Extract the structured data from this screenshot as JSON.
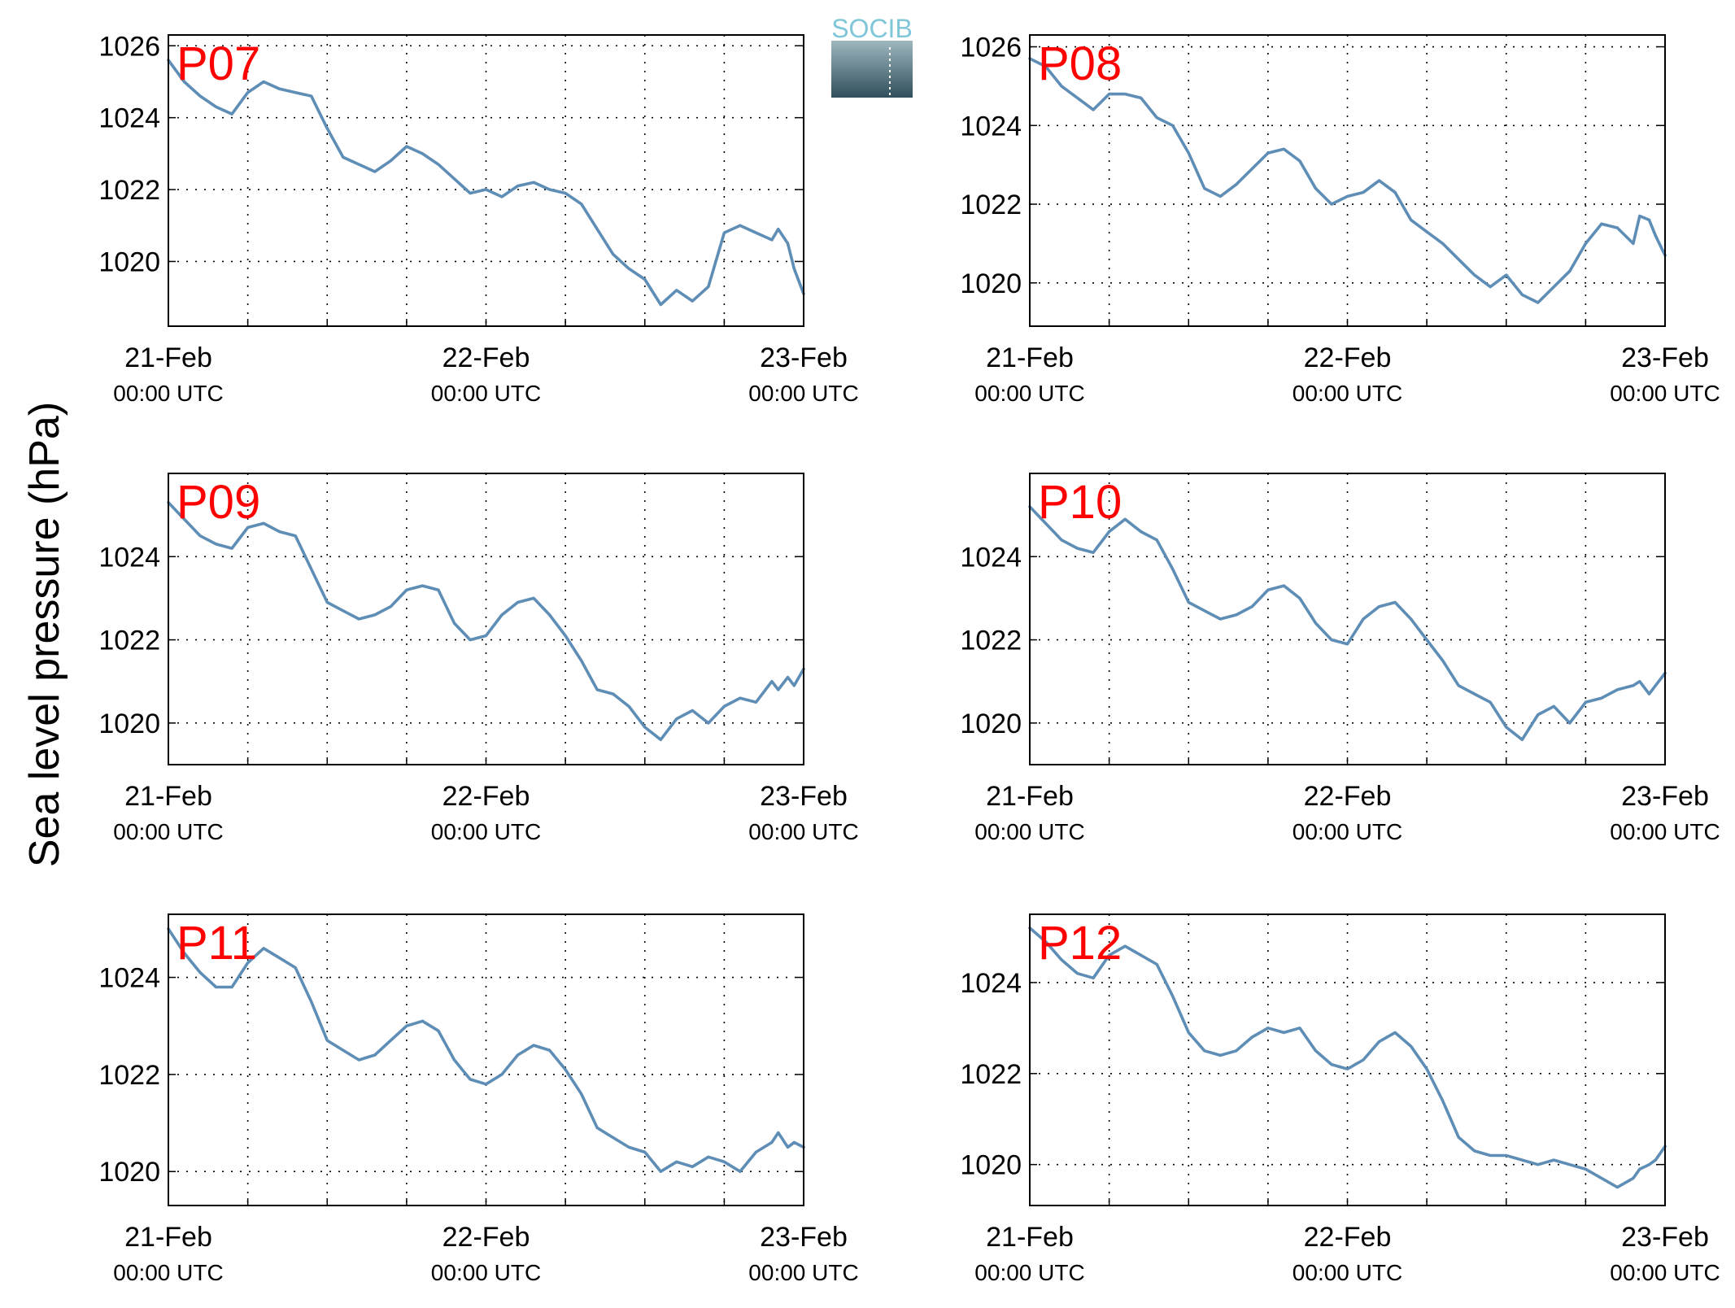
{
  "figure": {
    "ylabel": "Sea level pressure (hPa)",
    "logo_text": "SOCIB",
    "colors": {
      "line": "#5e8db5",
      "panel_label": "#ff0000",
      "axes": "#000000",
      "grid": "#000000",
      "logo_text": "#7fc6d8"
    }
  },
  "chart_data": [
    {
      "type": "line",
      "title": "P07",
      "x_unit": "day offset from 21-Feb 00:00 UTC",
      "xlim": [
        0,
        2
      ],
      "ylim": [
        1018.2,
        1026.3
      ],
      "yticks": [
        1020,
        1022,
        1024,
        1026
      ],
      "xticks": [
        {
          "label": "21-Feb",
          "sub": "00:00 UTC",
          "x": 0
        },
        {
          "label": "22-Feb",
          "sub": "00:00 UTC",
          "x": 1
        },
        {
          "label": "23-Feb",
          "sub": "00:00 UTC",
          "x": 2
        }
      ],
      "grid": true,
      "series": [
        {
          "x": [
            0,
            0.05,
            0.1,
            0.15,
            0.2,
            0.25,
            0.3,
            0.35,
            0.4,
            0.45,
            0.5,
            0.55,
            0.6,
            0.65,
            0.7,
            0.75,
            0.8,
            0.85,
            0.9,
            0.95,
            1,
            1.05,
            1.1,
            1.15,
            1.2,
            1.25,
            1.3,
            1.35,
            1.4,
            1.45,
            1.5,
            1.55,
            1.6,
            1.65,
            1.7,
            1.75,
            1.8,
            1.85,
            1.9,
            1.92,
            1.95,
            1.97,
            2
          ],
          "y": [
            1025.6,
            1025.0,
            1024.6,
            1024.3,
            1024.1,
            1024.7,
            1025.0,
            1024.8,
            1024.7,
            1024.6,
            1023.7,
            1022.9,
            1022.7,
            1022.5,
            1022.8,
            1023.2,
            1023.0,
            1022.7,
            1022.3,
            1021.9,
            1022.0,
            1021.8,
            1022.1,
            1022.2,
            1022.0,
            1021.9,
            1021.6,
            1020.9,
            1020.2,
            1019.8,
            1019.5,
            1018.8,
            1019.2,
            1018.9,
            1019.3,
            1020.8,
            1021.0,
            1020.8,
            1020.6,
            1020.9,
            1020.5,
            1019.8,
            1019.1
          ]
        }
      ]
    },
    {
      "type": "line",
      "title": "P08",
      "x_unit": "day offset from 21-Feb 00:00 UTC",
      "xlim": [
        0,
        2
      ],
      "ylim": [
        1018.9,
        1026.3
      ],
      "yticks": [
        1020,
        1022,
        1024,
        1026
      ],
      "xticks": [
        {
          "label": "21-Feb",
          "sub": "00:00 UTC",
          "x": 0
        },
        {
          "label": "22-Feb",
          "sub": "00:00 UTC",
          "x": 1
        },
        {
          "label": "23-Feb",
          "sub": "00:00 UTC",
          "x": 2
        }
      ],
      "grid": true,
      "series": [
        {
          "x": [
            0,
            0.05,
            0.1,
            0.15,
            0.2,
            0.25,
            0.3,
            0.35,
            0.4,
            0.45,
            0.5,
            0.55,
            0.6,
            0.65,
            0.7,
            0.75,
            0.8,
            0.85,
            0.9,
            0.95,
            1,
            1.05,
            1.1,
            1.15,
            1.2,
            1.25,
            1.3,
            1.35,
            1.4,
            1.45,
            1.5,
            1.55,
            1.6,
            1.65,
            1.7,
            1.75,
            1.8,
            1.85,
            1.9,
            1.92,
            1.95,
            1.97,
            2
          ],
          "y": [
            1025.7,
            1025.5,
            1025.0,
            1024.7,
            1024.4,
            1024.8,
            1024.8,
            1024.7,
            1024.2,
            1024.0,
            1023.3,
            1022.4,
            1022.2,
            1022.5,
            1022.9,
            1023.3,
            1023.4,
            1023.1,
            1022.4,
            1022.0,
            1022.2,
            1022.3,
            1022.6,
            1022.3,
            1021.6,
            1021.3,
            1021.0,
            1020.6,
            1020.2,
            1019.9,
            1020.2,
            1019.7,
            1019.5,
            1019.9,
            1020.3,
            1021.0,
            1021.5,
            1021.4,
            1021.0,
            1021.7,
            1021.6,
            1021.2,
            1020.7
          ]
        }
      ]
    },
    {
      "type": "line",
      "title": "P09",
      "x_unit": "day offset from 21-Feb 00:00 UTC",
      "xlim": [
        0,
        2
      ],
      "ylim": [
        1019.0,
        1026.0
      ],
      "yticks": [
        1020,
        1022,
        1024
      ],
      "xticks": [
        {
          "label": "21-Feb",
          "sub": "00:00 UTC",
          "x": 0
        },
        {
          "label": "22-Feb",
          "sub": "00:00 UTC",
          "x": 1
        },
        {
          "label": "23-Feb",
          "sub": "00:00 UTC",
          "x": 2
        }
      ],
      "grid": true,
      "series": [
        {
          "x": [
            0,
            0.05,
            0.1,
            0.15,
            0.2,
            0.25,
            0.3,
            0.35,
            0.4,
            0.45,
            0.5,
            0.55,
            0.6,
            0.65,
            0.7,
            0.75,
            0.8,
            0.85,
            0.9,
            0.95,
            1,
            1.05,
            1.1,
            1.15,
            1.2,
            1.25,
            1.3,
            1.35,
            1.4,
            1.45,
            1.5,
            1.55,
            1.6,
            1.65,
            1.7,
            1.75,
            1.8,
            1.85,
            1.9,
            1.92,
            1.95,
            1.97,
            2
          ],
          "y": [
            1025.3,
            1024.9,
            1024.5,
            1024.3,
            1024.2,
            1024.7,
            1024.8,
            1024.6,
            1024.5,
            1023.7,
            1022.9,
            1022.7,
            1022.5,
            1022.6,
            1022.8,
            1023.2,
            1023.3,
            1023.2,
            1022.4,
            1022.0,
            1022.1,
            1022.6,
            1022.9,
            1023.0,
            1022.6,
            1022.1,
            1021.5,
            1020.8,
            1020.7,
            1020.4,
            1019.9,
            1019.6,
            1020.1,
            1020.3,
            1020.0,
            1020.4,
            1020.6,
            1020.5,
            1021.0,
            1020.8,
            1021.1,
            1020.9,
            1021.3
          ]
        }
      ]
    },
    {
      "type": "line",
      "title": "P10",
      "x_unit": "day offset from 21-Feb 00:00 UTC",
      "xlim": [
        0,
        2
      ],
      "ylim": [
        1019.0,
        1026.0
      ],
      "yticks": [
        1020,
        1022,
        1024
      ],
      "xticks": [
        {
          "label": "21-Feb",
          "sub": "00:00 UTC",
          "x": 0
        },
        {
          "label": "22-Feb",
          "sub": "00:00 UTC",
          "x": 1
        },
        {
          "label": "23-Feb",
          "sub": "00:00 UTC",
          "x": 2
        }
      ],
      "grid": true,
      "series": [
        {
          "x": [
            0,
            0.05,
            0.1,
            0.15,
            0.2,
            0.25,
            0.3,
            0.35,
            0.4,
            0.45,
            0.5,
            0.55,
            0.6,
            0.65,
            0.7,
            0.75,
            0.8,
            0.85,
            0.9,
            0.95,
            1,
            1.05,
            1.1,
            1.15,
            1.2,
            1.25,
            1.3,
            1.35,
            1.4,
            1.45,
            1.5,
            1.55,
            1.6,
            1.65,
            1.7,
            1.75,
            1.8,
            1.85,
            1.9,
            1.92,
            1.95,
            1.97,
            2
          ],
          "y": [
            1025.2,
            1024.8,
            1024.4,
            1024.2,
            1024.1,
            1024.6,
            1024.9,
            1024.6,
            1024.4,
            1023.7,
            1022.9,
            1022.7,
            1022.5,
            1022.6,
            1022.8,
            1023.2,
            1023.3,
            1023.0,
            1022.4,
            1022.0,
            1021.9,
            1022.5,
            1022.8,
            1022.9,
            1022.5,
            1022.0,
            1021.5,
            1020.9,
            1020.7,
            1020.5,
            1019.9,
            1019.6,
            1020.2,
            1020.4,
            1020.0,
            1020.5,
            1020.6,
            1020.8,
            1020.9,
            1021.0,
            1020.7,
            1020.9,
            1021.2
          ]
        }
      ]
    },
    {
      "type": "line",
      "title": "P11",
      "x_unit": "day offset from 21-Feb 00:00 UTC",
      "xlim": [
        0,
        2
      ],
      "ylim": [
        1019.3,
        1025.3
      ],
      "yticks": [
        1020,
        1022,
        1024
      ],
      "xticks": [
        {
          "label": "21-Feb",
          "sub": "00:00 UTC",
          "x": 0
        },
        {
          "label": "22-Feb",
          "sub": "00:00 UTC",
          "x": 1
        },
        {
          "label": "23-Feb",
          "sub": "00:00 UTC",
          "x": 2
        }
      ],
      "grid": true,
      "series": [
        {
          "x": [
            0,
            0.05,
            0.1,
            0.15,
            0.2,
            0.25,
            0.3,
            0.35,
            0.4,
            0.45,
            0.5,
            0.55,
            0.6,
            0.65,
            0.7,
            0.75,
            0.8,
            0.85,
            0.9,
            0.95,
            1,
            1.05,
            1.1,
            1.15,
            1.2,
            1.25,
            1.3,
            1.35,
            1.4,
            1.45,
            1.5,
            1.55,
            1.6,
            1.65,
            1.7,
            1.75,
            1.8,
            1.85,
            1.9,
            1.92,
            1.95,
            1.97,
            2
          ],
          "y": [
            1025.0,
            1024.5,
            1024.1,
            1023.8,
            1023.8,
            1024.3,
            1024.6,
            1024.4,
            1024.2,
            1023.5,
            1022.7,
            1022.5,
            1022.3,
            1022.4,
            1022.7,
            1023.0,
            1023.1,
            1022.9,
            1022.3,
            1021.9,
            1021.8,
            1022.0,
            1022.4,
            1022.6,
            1022.5,
            1022.1,
            1021.6,
            1020.9,
            1020.7,
            1020.5,
            1020.4,
            1020.0,
            1020.2,
            1020.1,
            1020.3,
            1020.2,
            1020.0,
            1020.4,
            1020.6,
            1020.8,
            1020.5,
            1020.6,
            1020.5
          ]
        }
      ]
    },
    {
      "type": "line",
      "title": "P12",
      "x_unit": "day offset from 21-Feb 00:00 UTC",
      "xlim": [
        0,
        2
      ],
      "ylim": [
        1019.1,
        1025.5
      ],
      "yticks": [
        1020,
        1022,
        1024
      ],
      "xticks": [
        {
          "label": "21-Feb",
          "sub": "00:00 UTC",
          "x": 0
        },
        {
          "label": "22-Feb",
          "sub": "00:00 UTC",
          "x": 1
        },
        {
          "label": "23-Feb",
          "sub": "00:00 UTC",
          "x": 2
        }
      ],
      "grid": true,
      "series": [
        {
          "x": [
            0,
            0.05,
            0.1,
            0.15,
            0.2,
            0.25,
            0.3,
            0.35,
            0.4,
            0.45,
            0.5,
            0.55,
            0.6,
            0.65,
            0.7,
            0.75,
            0.8,
            0.85,
            0.9,
            0.95,
            1,
            1.05,
            1.1,
            1.15,
            1.2,
            1.25,
            1.3,
            1.35,
            1.4,
            1.45,
            1.5,
            1.55,
            1.6,
            1.65,
            1.7,
            1.75,
            1.8,
            1.85,
            1.9,
            1.92,
            1.95,
            1.97,
            2
          ],
          "y": [
            1025.2,
            1024.9,
            1024.5,
            1024.2,
            1024.1,
            1024.6,
            1024.8,
            1024.6,
            1024.4,
            1023.7,
            1022.9,
            1022.5,
            1022.4,
            1022.5,
            1022.8,
            1023.0,
            1022.9,
            1023.0,
            1022.5,
            1022.2,
            1022.1,
            1022.3,
            1022.7,
            1022.9,
            1022.6,
            1022.1,
            1021.4,
            1020.6,
            1020.3,
            1020.2,
            1020.2,
            1020.1,
            1020.0,
            1020.1,
            1020.0,
            1019.9,
            1019.7,
            1019.5,
            1019.7,
            1019.9,
            1020.0,
            1020.1,
            1020.4
          ]
        }
      ]
    }
  ]
}
